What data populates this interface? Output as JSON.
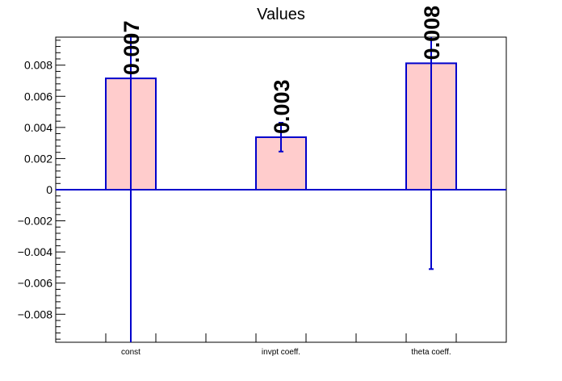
{
  "chart_data": {
    "type": "bar",
    "title": "Values",
    "categories": [
      "const",
      "invpt coeff.",
      "theta coeff."
    ],
    "series": [
      {
        "values": [
          0.00715,
          0.00337,
          0.00812
        ],
        "error_low": [
          -0.0098,
          0.00245,
          -0.0051
        ],
        "error_high": [
          0.0098,
          0.0043,
          0.0098
        ],
        "data_labels": [
          "0.007",
          "0.003",
          "0.008"
        ]
      }
    ],
    "ylim": [
      -0.0098,
      0.0098
    ],
    "yticks": [
      "0.008",
      "0.006",
      "0.004",
      "0.002",
      "0",
      "−0.002",
      "−0.004",
      "−0.006",
      "−0.008"
    ],
    "ytick_values": [
      0.008,
      0.006,
      0.004,
      0.002,
      0,
      -0.002,
      -0.004,
      -0.006,
      -0.008
    ],
    "xlabel": "",
    "ylabel": "",
    "grid": false,
    "bar_fill": "#ffcccc",
    "bar_edge": "#0000cc",
    "axis_color": "#000000"
  }
}
